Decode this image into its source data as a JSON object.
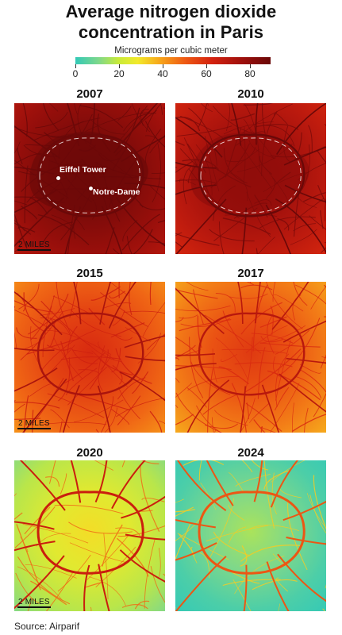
{
  "title_line1": "Average nitrogen dioxide",
  "title_line2": "concentration in Paris",
  "legend": {
    "caption": "Micrograms per cubic meter",
    "ticks": [
      "0",
      "20",
      "40",
      "60",
      "80"
    ],
    "colors": [
      "#33c9b7",
      "#c8ea3a",
      "#f7a21a",
      "#d4220f",
      "#6a0808"
    ]
  },
  "panels": [
    {
      "year": "2007",
      "level": 0.95,
      "scale_label": "2 MILES"
    },
    {
      "year": "2010",
      "level": 0.85,
      "scale_label": ""
    },
    {
      "year": "2015",
      "level": 0.62,
      "scale_label": "2 MILES"
    },
    {
      "year": "2017",
      "level": 0.58,
      "scale_label": ""
    },
    {
      "year": "2020",
      "level": 0.28,
      "scale_label": "2 MILES"
    },
    {
      "year": "2024",
      "level": 0.12,
      "scale_label": ""
    }
  ],
  "landmarks": {
    "eiffel": "Eiffel Tower",
    "notre_dame": "Notre-Dame"
  },
  "source": "Source: Airparif"
}
